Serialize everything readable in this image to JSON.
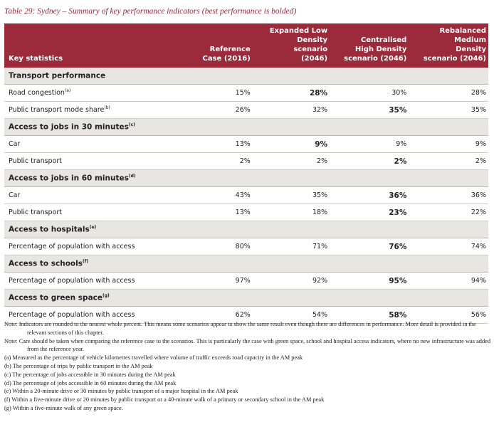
{
  "title": "Table 29: Sydney – Summary of key performance indicators (best performance is bolded)",
  "colors": {
    "header": "#9b2a3a",
    "section": "#e8e6e3"
  },
  "columns": [
    "Key statistics",
    "Reference Case (2016)",
    "Expanded Low Density scenario (2046)",
    "Centralised High Density scenario (2046)",
    "Rebalanced Medium Density scenario (2046)"
  ],
  "sections": [
    {
      "title": "Transport performance",
      "sup": "",
      "rows": [
        {
          "label": "Road congestion",
          "sup": "(a)",
          "values": [
            "15%",
            "28%",
            "30%",
            "28%"
          ],
          "bold": [
            1
          ]
        },
        {
          "label": "Public transport mode share",
          "sup": "(b)",
          "values": [
            "26%",
            "32%",
            "35%",
            "35%"
          ],
          "bold": [
            2
          ]
        }
      ]
    },
    {
      "title": "Access to jobs in 30 minutes",
      "sup": "(c)",
      "rows": [
        {
          "label": "Car",
          "sup": "",
          "values": [
            "13%",
            "9%",
            "9%",
            "9%"
          ],
          "bold": [
            1
          ]
        },
        {
          "label": "Public transport",
          "sup": "",
          "values": [
            "2%",
            "2%",
            "2%",
            "2%"
          ],
          "bold": [
            2
          ]
        }
      ]
    },
    {
      "title": "Access to jobs in 60 minutes",
      "sup": "(d)",
      "rows": [
        {
          "label": "Car",
          "sup": "",
          "values": [
            "43%",
            "35%",
            "36%",
            "36%"
          ],
          "bold": [
            2
          ]
        },
        {
          "label": "Public transport",
          "sup": "",
          "values": [
            "13%",
            "18%",
            "23%",
            "22%"
          ],
          "bold": [
            2
          ]
        }
      ]
    },
    {
      "title": "Access to hospitals",
      "sup": "(e)",
      "rows": [
        {
          "label": "Percentage of population with access",
          "sup": "",
          "values": [
            "80%",
            "71%",
            "76%",
            "74%"
          ],
          "bold": [
            2
          ]
        }
      ]
    },
    {
      "title": "Access to schools",
      "sup": "(f)",
      "rows": [
        {
          "label": "Percentage of population with access",
          "sup": "",
          "values": [
            "97%",
            "92%",
            "95%",
            "94%"
          ],
          "bold": [
            2
          ]
        }
      ]
    },
    {
      "title": "Access to green space",
      "sup": "(g)",
      "rows": [
        {
          "label": "Percentage of population with access",
          "sup": "",
          "values": [
            "62%",
            "54%",
            "58%",
            "56%"
          ],
          "bold": [
            2
          ]
        }
      ]
    }
  ],
  "notes": [
    "Note: Indicators are rounded to the nearest whole percent. This means some scenarios appear to show the same result even though there are differences in performance. More detail is provided in the relevant sections of this chapter.",
    "Note: Care should be taken when comparing the reference case to the scenarios. This is particularly the case with green space, school and hospital access indicators, where no new infrastructure was added from the reference year.",
    "(a) Measured as the percentage of vehicle kilometres travelled where volume of traffic exceeds road capacity in the AM peak",
    "(b) The percentage of trips by public transport in the AM peak",
    "(c) The percentage of jobs accessible in 30 minutes during the AM peak",
    "(d) The percentage of jobs accessible in 60 minutes during the AM peak",
    "(e) Within a 20-minute drive or 30 minutes by public transport of a major hospital in the AM peak",
    "(f) Within a five-minute drive or 20 minutes by public transport or a 40-minute walk of a primary or secondary school in the AM peak",
    "(g) Within a five-minute walk of any green space."
  ]
}
